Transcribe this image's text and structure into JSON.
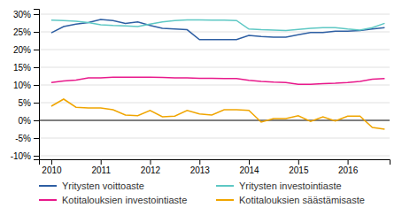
{
  "chart_data": {
    "type": "line",
    "x": [
      2010.0,
      2010.25,
      2010.5,
      2010.75,
      2011.0,
      2011.25,
      2011.5,
      2011.75,
      2012.0,
      2012.25,
      2012.5,
      2012.75,
      2013.0,
      2013.25,
      2013.5,
      2013.75,
      2014.0,
      2014.25,
      2014.5,
      2014.75,
      2015.0,
      2015.25,
      2015.5,
      2015.75,
      2016.0,
      2016.25,
      2016.5,
      2016.75
    ],
    "series": [
      {
        "name": "Yritysten voittoaste",
        "color": "#2e5fa3",
        "values": [
          0.247,
          0.265,
          0.272,
          0.276,
          0.285,
          0.282,
          0.274,
          0.278,
          0.268,
          0.26,
          0.258,
          0.256,
          0.228,
          0.228,
          0.228,
          0.228,
          0.24,
          0.237,
          0.235,
          0.235,
          0.242,
          0.248,
          0.248,
          0.252,
          0.252,
          0.254,
          0.258,
          0.262
        ]
      },
      {
        "name": "Yritysten investointiaste",
        "color": "#5ec8c4",
        "values": [
          0.283,
          0.282,
          0.28,
          0.276,
          0.27,
          0.268,
          0.267,
          0.265,
          0.272,
          0.278,
          0.282,
          0.284,
          0.284,
          0.283,
          0.283,
          0.282,
          0.258,
          0.256,
          0.255,
          0.254,
          0.257,
          0.26,
          0.262,
          0.262,
          0.258,
          0.255,
          0.262,
          0.274
        ]
      },
      {
        "name": "Kotitalouksien investointiaste",
        "color": "#e8198b",
        "values": [
          0.107,
          0.111,
          0.114,
          0.12,
          0.12,
          0.122,
          0.122,
          0.122,
          0.122,
          0.121,
          0.12,
          0.12,
          0.119,
          0.119,
          0.118,
          0.118,
          0.113,
          0.11,
          0.108,
          0.107,
          0.102,
          0.102,
          0.104,
          0.105,
          0.107,
          0.11,
          0.116,
          0.118
        ]
      },
      {
        "name": "Kotitalouksien säästämisaste",
        "color": "#f0a500",
        "values": [
          0.04,
          0.06,
          0.037,
          0.035,
          0.035,
          0.03,
          0.015,
          0.013,
          0.028,
          0.01,
          0.012,
          0.028,
          0.018,
          0.015,
          0.03,
          0.03,
          0.028,
          -0.005,
          0.005,
          0.005,
          0.013,
          -0.003,
          0.01,
          -0.002,
          0.012,
          0.012,
          -0.02,
          -0.025
        ]
      }
    ],
    "xlim": [
      2009.75,
      2016.85
    ],
    "xticks": [
      2010,
      2011,
      2012,
      2013,
      2014,
      2015,
      2016
    ],
    "ylim": [
      -0.11,
      0.315
    ],
    "yticks": [
      {
        "value": -0.1,
        "label": "-10%"
      },
      {
        "value": -0.05,
        "label": "-5%"
      },
      {
        "value": 0.0,
        "label": "0%"
      },
      {
        "value": 0.05,
        "label": "5%"
      },
      {
        "value": 0.1,
        "label": "10%"
      },
      {
        "value": 0.15,
        "label": "15%"
      },
      {
        "value": 0.2,
        "label": "20%"
      },
      {
        "value": 0.25,
        "label": "25%"
      },
      {
        "value": 0.3,
        "label": "30%"
      }
    ],
    "grid": true
  }
}
